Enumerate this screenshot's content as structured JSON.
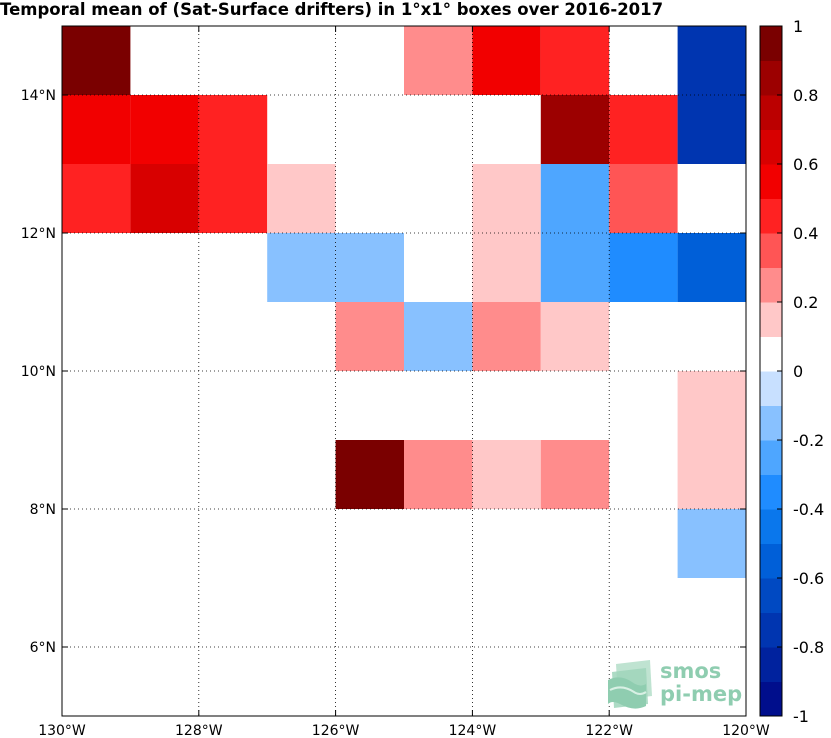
{
  "chart_data": {
    "type": "heatmap",
    "title": "Temporal mean of (Sat-Surface drifters) in 1°x1° boxes over 2016-2017",
    "xlim": [
      -130,
      -120
    ],
    "ylim": [
      5,
      15
    ],
    "x_ticks": [
      {
        "value": -130,
        "label": "130°W"
      },
      {
        "value": -128,
        "label": "128°W"
      },
      {
        "value": -126,
        "label": "126°W"
      },
      {
        "value": -124,
        "label": "124°W"
      },
      {
        "value": -122,
        "label": "122°W"
      },
      {
        "value": -120,
        "label": "120°W"
      }
    ],
    "y_ticks": [
      {
        "value": 6,
        "label": "6°N"
      },
      {
        "value": 8,
        "label": "8°N"
      },
      {
        "value": 10,
        "label": "10°N"
      },
      {
        "value": 12,
        "label": "12°N"
      },
      {
        "value": 14,
        "label": "14°N"
      }
    ],
    "grid": "dotted",
    "cells": [
      {
        "lon": -130,
        "lat": 14,
        "value": 0.95
      },
      {
        "lon": -125,
        "lat": 14,
        "value": 0.25
      },
      {
        "lon": -124,
        "lat": 14,
        "value": 0.55
      },
      {
        "lon": -123,
        "lat": 14,
        "value": 0.45
      },
      {
        "lon": -121,
        "lat": 14,
        "value": -0.75
      },
      {
        "lon": -130,
        "lat": 13,
        "value": 0.55
      },
      {
        "lon": -129,
        "lat": 13,
        "value": 0.55
      },
      {
        "lon": -128,
        "lat": 13,
        "value": 0.45
      },
      {
        "lon": -123,
        "lat": 13,
        "value": 0.85
      },
      {
        "lon": -122,
        "lat": 13,
        "value": 0.45
      },
      {
        "lon": -121,
        "lat": 13,
        "value": -0.75
      },
      {
        "lon": -130,
        "lat": 12,
        "value": 0.45
      },
      {
        "lon": -129,
        "lat": 12,
        "value": 0.65
      },
      {
        "lon": -128,
        "lat": 12,
        "value": 0.45
      },
      {
        "lon": -127,
        "lat": 12,
        "value": 0.15
      },
      {
        "lon": -124,
        "lat": 12,
        "value": 0.15
      },
      {
        "lon": -123,
        "lat": 12,
        "value": -0.25
      },
      {
        "lon": -122,
        "lat": 12,
        "value": 0.35
      },
      {
        "lon": -127,
        "lat": 11,
        "value": -0.15
      },
      {
        "lon": -126,
        "lat": 11,
        "value": -0.15
      },
      {
        "lon": -124,
        "lat": 11,
        "value": 0.15
      },
      {
        "lon": -123,
        "lat": 11,
        "value": -0.25
      },
      {
        "lon": -122,
        "lat": 11,
        "value": -0.35
      },
      {
        "lon": -121,
        "lat": 11,
        "value": -0.55
      },
      {
        "lon": -126,
        "lat": 10,
        "value": 0.25
      },
      {
        "lon": -125,
        "lat": 10,
        "value": -0.15
      },
      {
        "lon": -124,
        "lat": 10,
        "value": 0.25
      },
      {
        "lon": -123,
        "lat": 10,
        "value": 0.15
      },
      {
        "lon": -121,
        "lat": 9,
        "value": 0.15
      },
      {
        "lon": -126,
        "lat": 8,
        "value": 0.95
      },
      {
        "lon": -125,
        "lat": 8,
        "value": 0.25
      },
      {
        "lon": -124,
        "lat": 8,
        "value": 0.15
      },
      {
        "lon": -123,
        "lat": 8,
        "value": 0.25
      },
      {
        "lon": -121,
        "lat": 8,
        "value": 0.15
      },
      {
        "lon": -121,
        "lat": 7,
        "value": -0.15
      }
    ],
    "colorbar": {
      "range": [
        -1,
        1
      ],
      "levels": 20,
      "ticks": [
        {
          "value": 1,
          "label": "1"
        },
        {
          "value": 0.8,
          "label": "0.8"
        },
        {
          "value": 0.6,
          "label": "0.6"
        },
        {
          "value": 0.4,
          "label": "0.4"
        },
        {
          "value": 0.2,
          "label": "0.2"
        },
        {
          "value": 0,
          "label": "0"
        },
        {
          "value": -0.2,
          "label": "-0.2"
        },
        {
          "value": -0.4,
          "label": "-0.4"
        },
        {
          "value": -0.6,
          "label": "-0.6"
        },
        {
          "value": -0.8,
          "label": "-0.8"
        },
        {
          "value": -1,
          "label": "-1"
        }
      ],
      "colors": [
        "#000e8c",
        "#00229e",
        "#0035b0",
        "#0049c2",
        "#005fd8",
        "#0a77ec",
        "#1f8cff",
        "#4ea6ff",
        "#88c1ff",
        "#c8e0ff",
        "#ffffff",
        "#ffc8c8",
        "#ff8c8c",
        "#ff5555",
        "#ff2222",
        "#f20000",
        "#d80000",
        "#bb0000",
        "#9c0000",
        "#7a0000"
      ]
    }
  },
  "logo": {
    "line1": "smos",
    "line2": "pi-mep",
    "color": "#8fcdb0"
  }
}
